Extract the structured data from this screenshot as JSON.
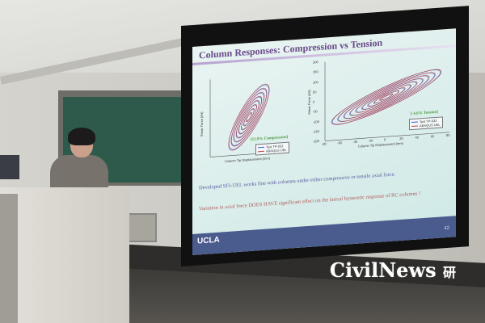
{
  "slide": {
    "title": "Column Responses: Compression vs Tension",
    "left_chart": {
      "annotation": "[12.8% Compression]",
      "legend": [
        "Test TP-031",
        "ABAQUS UEL"
      ],
      "xlabel": "Column Tip Displacement (mm)",
      "ylabel": "Shear Force (kN)"
    },
    "right_chart": {
      "annotation": "[-4.6% Tension]",
      "legend": [
        "Test TP-032",
        "ABAQUS UEL"
      ],
      "xlabel": "Column Tip Displacement (mm)",
      "ylabel": "Shear Force (kN)",
      "xticks": [
        "-80",
        "-60",
        "-40",
        "-20",
        "0",
        "20",
        "40",
        "60",
        "80"
      ],
      "yticks": [
        "200",
        "150",
        "100",
        "50",
        "0",
        "-50",
        "-100",
        "-150",
        "-200"
      ]
    },
    "bullets": [
      "Developed SFI-UEL works fine with columns under either compressive or tensile axial force.",
      "Variation in axial force DOES HAVE significant effect on the lateral hysteretic response of RC columns !"
    ],
    "footer_logo": "UCLA",
    "page_number": "42"
  },
  "watermark": {
    "text": "CivilNews",
    "glyph": "研"
  },
  "colors": {
    "test": "#3a5fd0",
    "model": "#c0404a",
    "annotation": "#4a9a3a"
  }
}
